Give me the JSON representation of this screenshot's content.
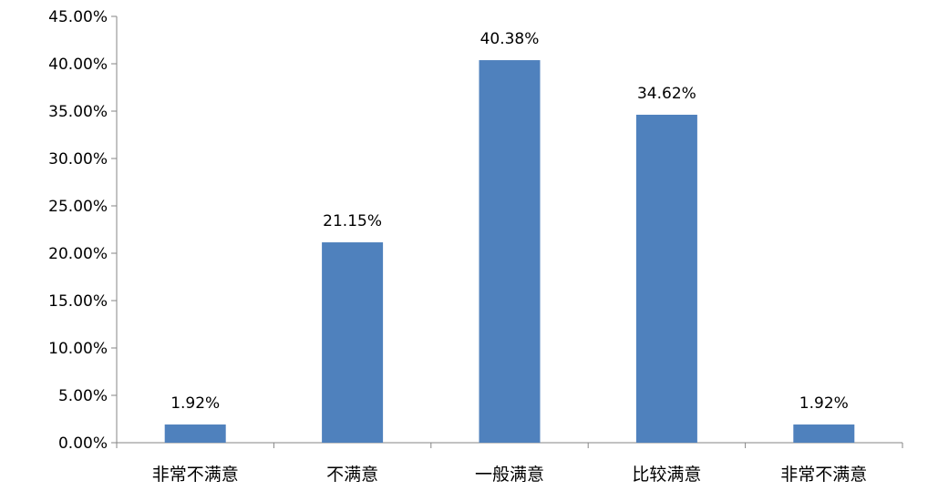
{
  "chart_data": {
    "type": "bar",
    "title": "",
    "xlabel": "",
    "ylabel": "",
    "categories": [
      "非常不满意",
      "不满意",
      "一般满意",
      "比较满意",
      "非常不满意"
    ],
    "values": [
      1.92,
      21.15,
      40.38,
      34.62,
      1.92
    ],
    "data_labels": [
      "1.92%",
      "21.15%",
      "40.38%",
      "34.62%",
      "1.92%"
    ],
    "ylim": [
      0,
      45
    ],
    "yticks": [
      0,
      5,
      10,
      15,
      20,
      25,
      30,
      35,
      40,
      45
    ],
    "ytick_labels": [
      "0.00%",
      "5.00%",
      "10.00%",
      "15.00%",
      "20.00%",
      "25.00%",
      "30.00%",
      "35.00%",
      "40.00%",
      "45.00%"
    ],
    "grid": false,
    "legend": "none",
    "bar_color": "#4F81BD"
  }
}
